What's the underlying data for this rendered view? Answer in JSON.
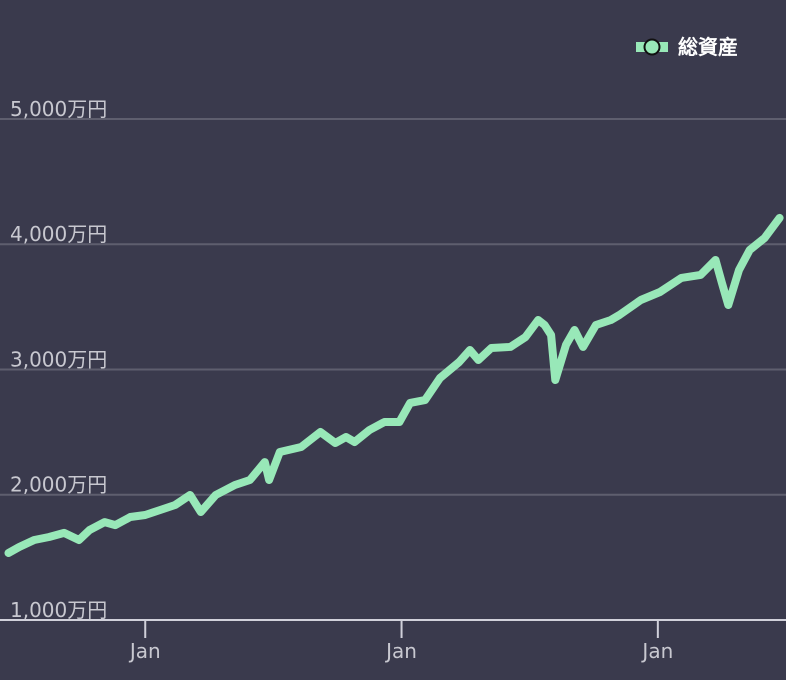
{
  "chart_data": {
    "type": "line",
    "x": [
      0.4,
      0.9,
      1.6,
      2.3,
      3.0,
      3.7,
      4.2,
      4.9,
      5.4,
      6.1,
      6.8,
      7.5,
      8.2,
      8.9,
      9.4,
      10.1,
      11.0,
      11.7,
      12.4,
      12.6,
      13.1,
      14.1,
      15.0,
      15.7,
      16.2,
      16.6,
      17.3,
      18.0,
      18.7,
      19.2,
      19.9,
      20.6,
      21.5,
      22.0,
      22.4,
      23.0,
      23.9,
      24.6,
      25.2,
      25.5,
      25.8,
      26.0,
      26.5,
      26.9,
      27.3,
      27.9,
      28.6,
      29.0,
      30.0,
      30.9,
      31.9,
      32.8,
      33.5,
      33.8,
      34.1,
      34.6,
      35.1,
      35.8,
      36.5
    ],
    "series": [
      {
        "name": "総資産",
        "color": "#98e8b8",
        "values": [
          1535,
          1583,
          1639,
          1663,
          1695,
          1639,
          1719,
          1782,
          1758,
          1822,
          1838,
          1878,
          1918,
          1998,
          1862,
          1998,
          2078,
          2118,
          2261,
          2118,
          2341,
          2381,
          2501,
          2413,
          2461,
          2421,
          2517,
          2581,
          2581,
          2733,
          2756,
          2932,
          3060,
          3156,
          3076,
          3172,
          3180,
          3259,
          3395,
          3355,
          3275,
          2916,
          3196,
          3315,
          3180,
          3355,
          3395,
          3435,
          3555,
          3619,
          3731,
          3755,
          3874,
          3691,
          3515,
          3794,
          3954,
          4050,
          4210
        ]
      }
    ],
    "xlim": [
      0,
      36.8
    ],
    "xticks": [
      {
        "value": 6.8,
        "label": "Jan"
      },
      {
        "value": 18.8,
        "label": "Jan"
      },
      {
        "value": 30.8,
        "label": "Jan"
      }
    ],
    "ylim": [
      1000,
      5950
    ],
    "yticks": [
      {
        "value": 1000,
        "label": "1,000万円"
      },
      {
        "value": 2000,
        "label": "2,000万円"
      },
      {
        "value": 3000,
        "label": "3,000万円"
      },
      {
        "value": 4000,
        "label": "4,000万円"
      },
      {
        "value": 5000,
        "label": "5,000万円"
      }
    ],
    "grid": true,
    "legend": "top-right"
  }
}
